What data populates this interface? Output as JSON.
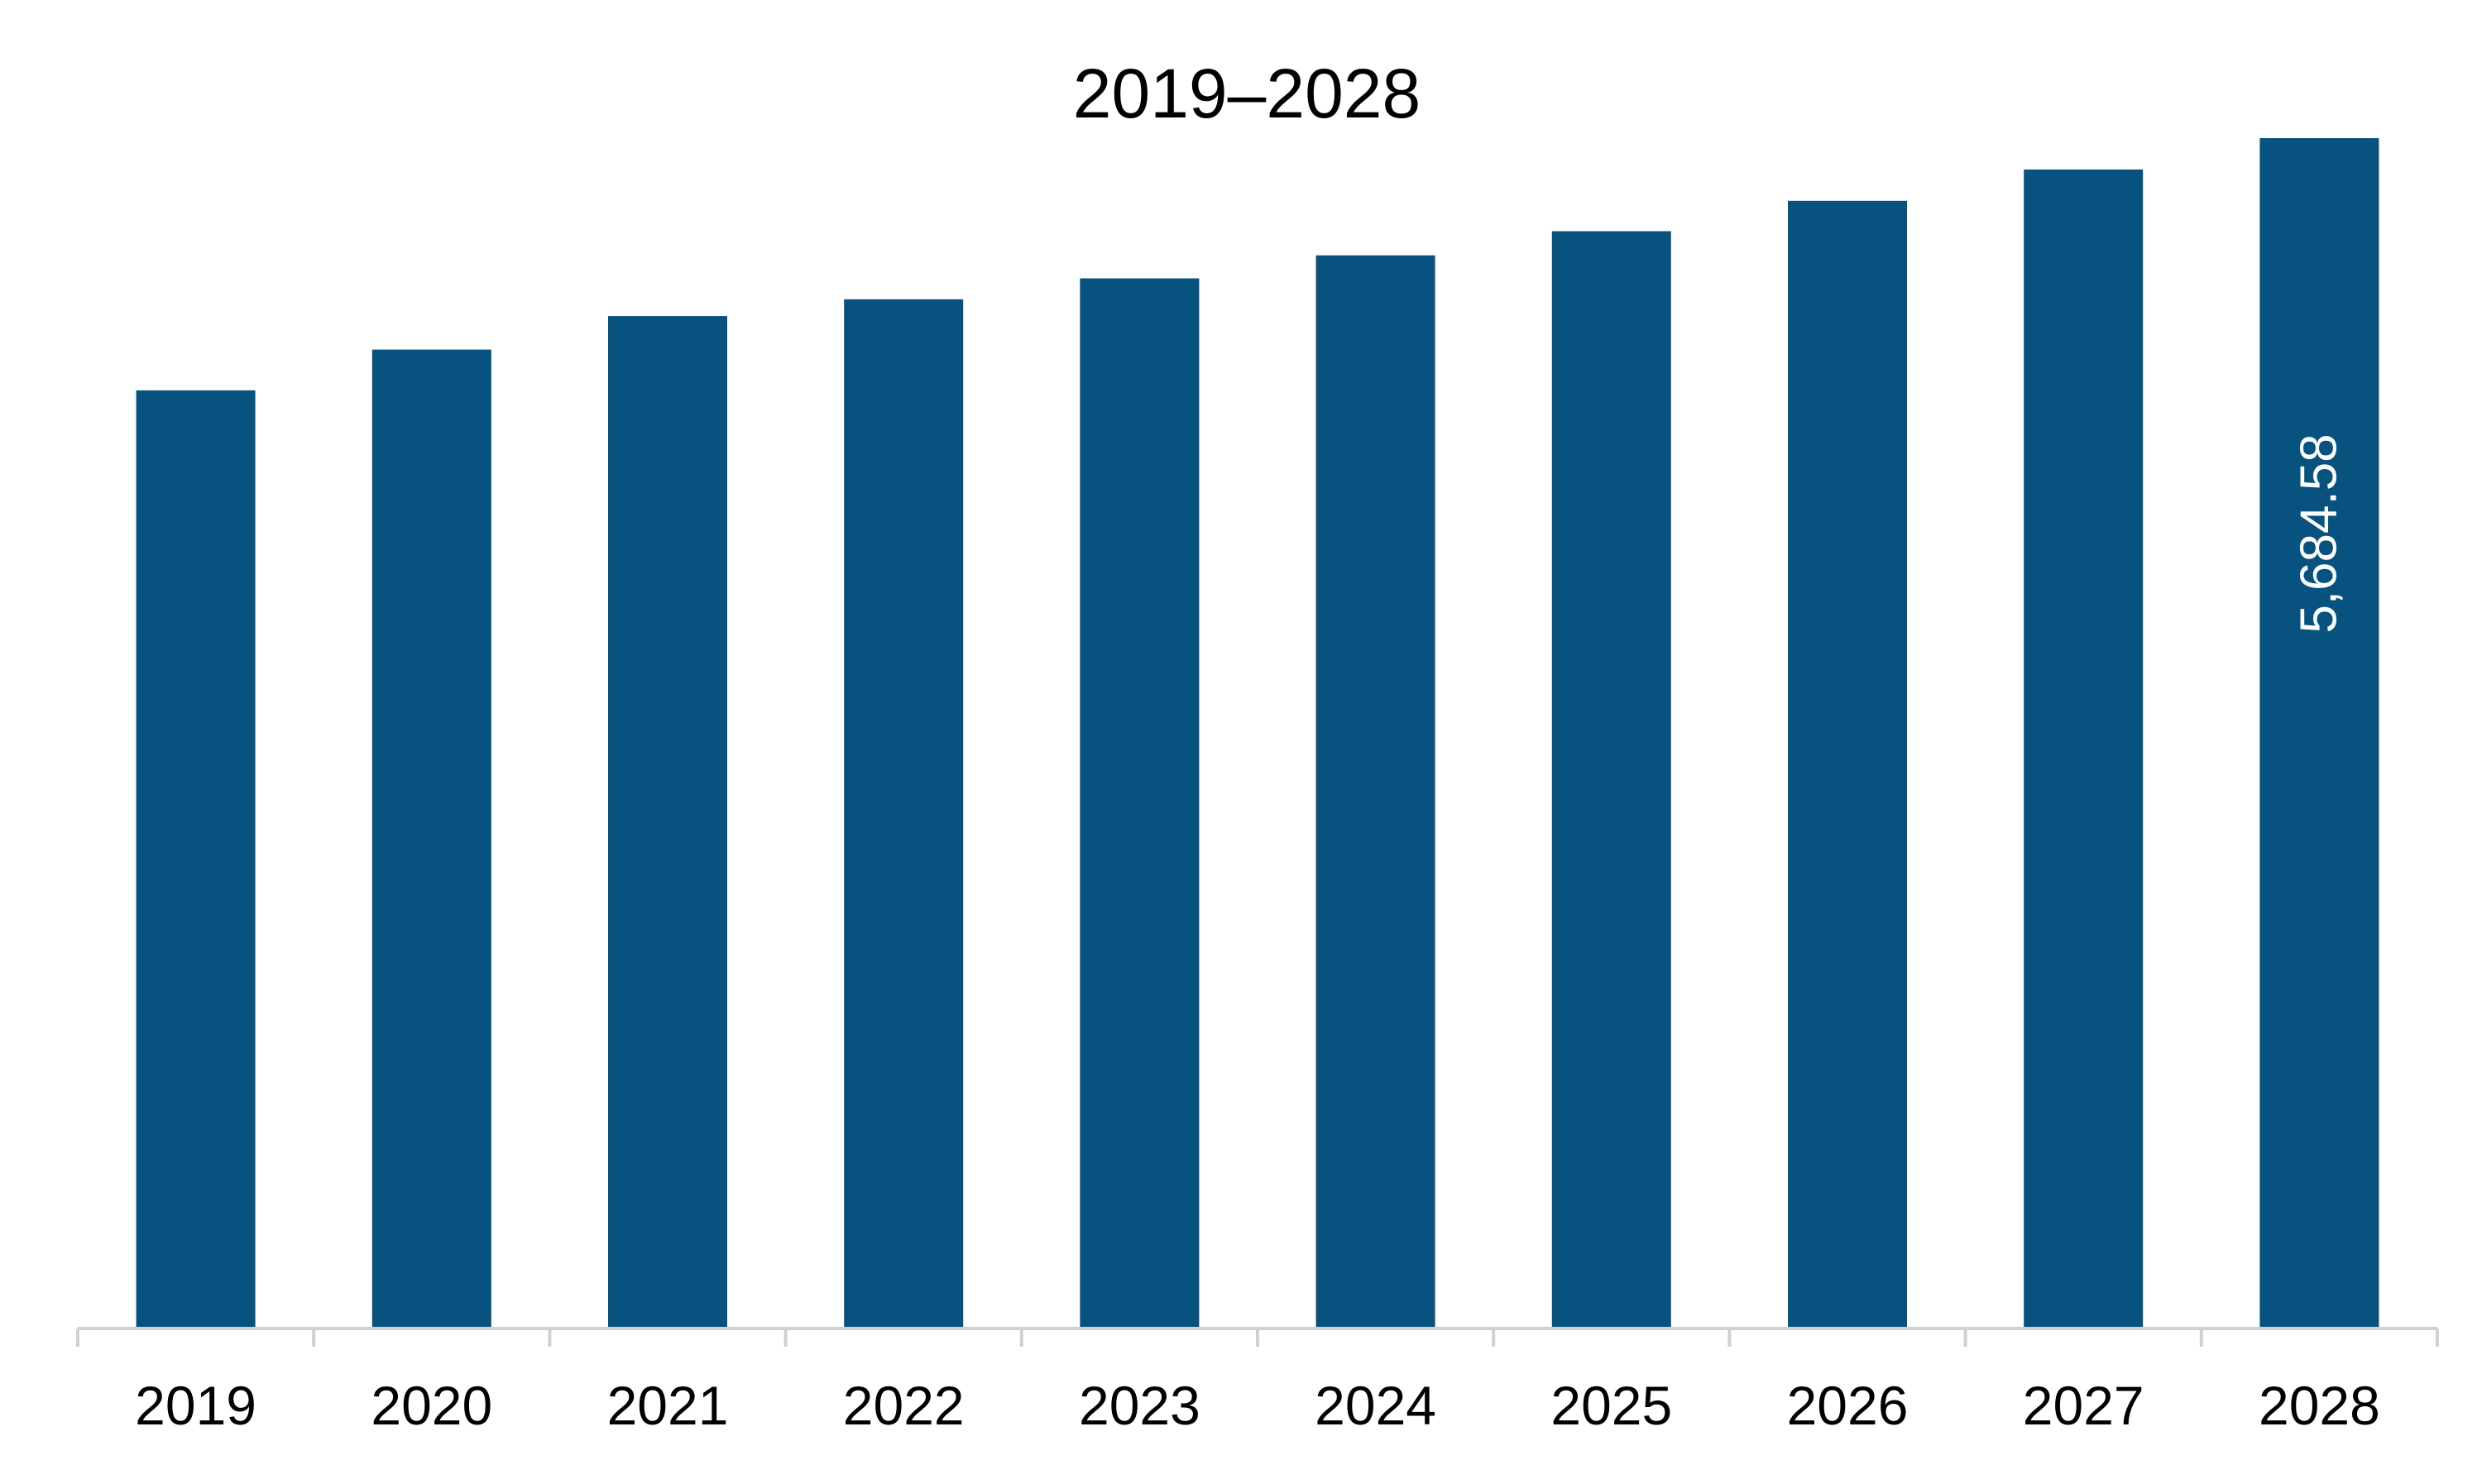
{
  "chart_data": {
    "type": "bar",
    "title": "2019–2028",
    "categories": [
      "2019",
      "2020",
      "2021",
      "2022",
      "2023",
      "2024",
      "2025",
      "2026",
      "2027",
      "2028"
    ],
    "values": [
      4480,
      4675,
      4835,
      4915,
      5015,
      5125,
      5240,
      5385,
      5535,
      5684.58
    ],
    "data_labels": [
      "",
      "",
      "",
      "",
      "",
      "",
      "",
      "",
      "",
      "5,684.58"
    ],
    "ylim": [
      0,
      5684.58
    ],
    "grid": false,
    "legend": "none",
    "colors": {
      "bar": "#07527F",
      "axis": "#d0d0d0"
    }
  }
}
